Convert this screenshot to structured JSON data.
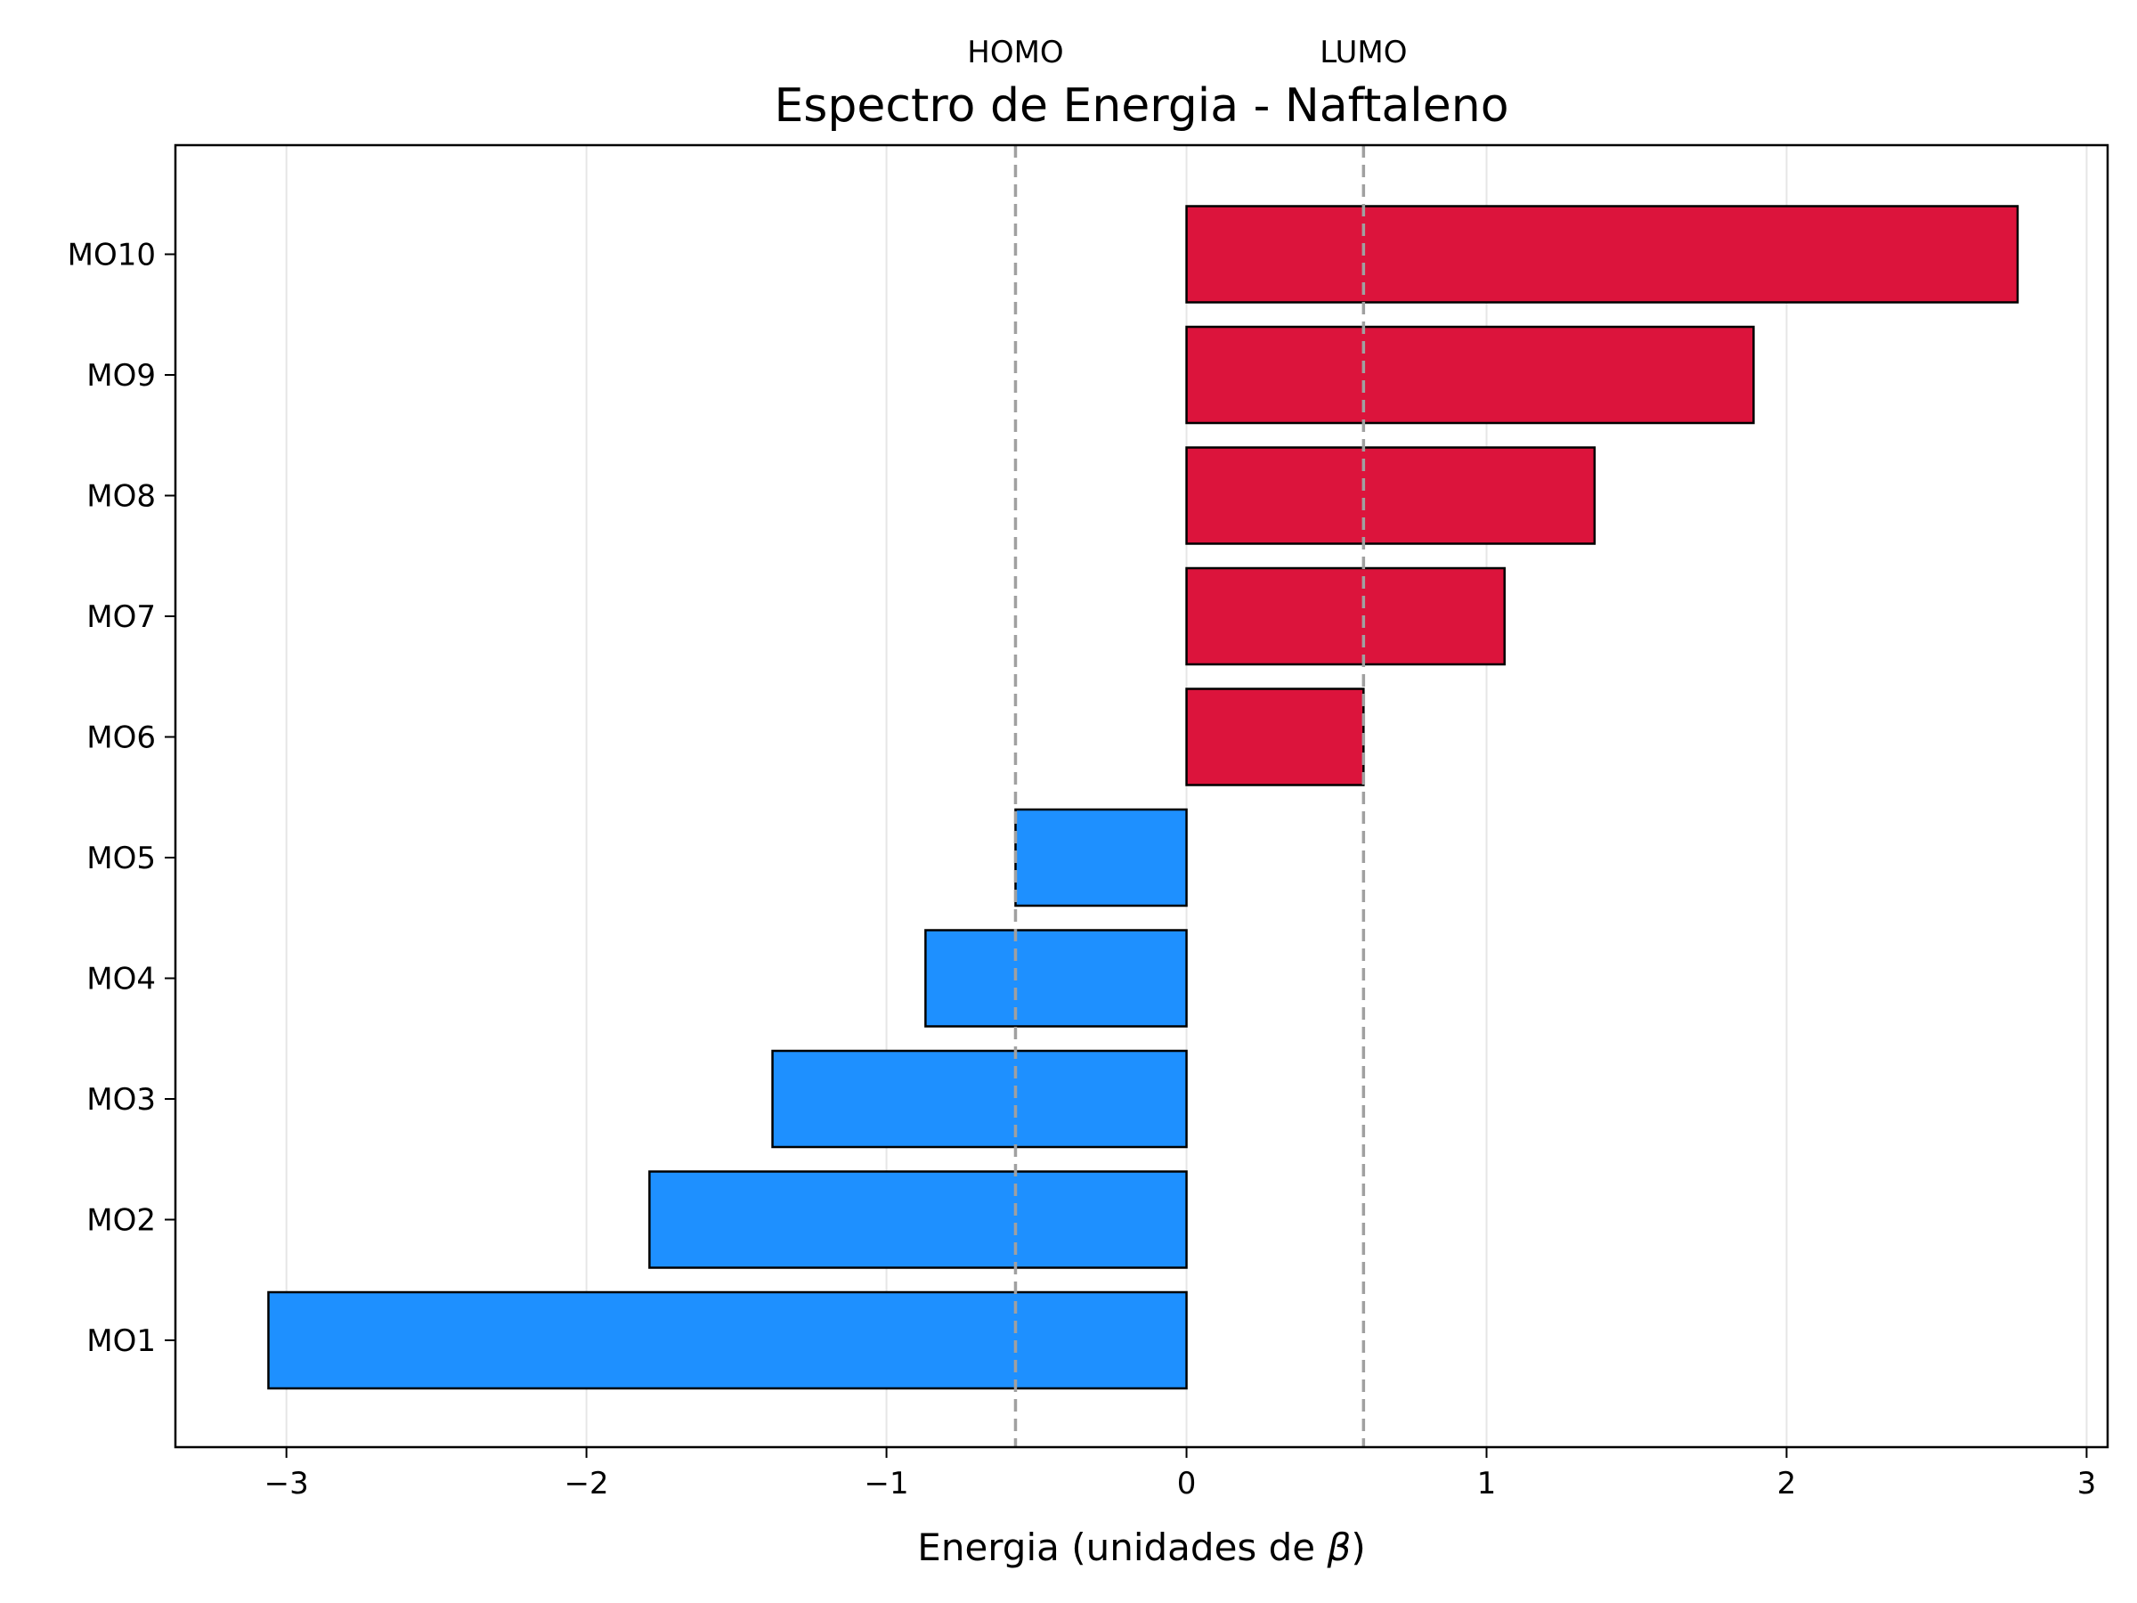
{
  "chart_data": {
    "type": "bar",
    "orientation": "horizontal",
    "title": "Espectro de Energia - Naftaleno",
    "xlabel_prefix": "Energia (unidades de ",
    "xlabel_symbol": "β",
    "xlabel_suffix": ")",
    "ylabel": "",
    "categories": [
      "MO1",
      "MO2",
      "MO3",
      "MO4",
      "MO5",
      "MO6",
      "MO7",
      "MO8",
      "MO9",
      "MO10"
    ],
    "values": [
      -3.06,
      -1.79,
      -1.38,
      -0.87,
      -0.57,
      0.59,
      1.06,
      1.36,
      1.89,
      2.77
    ],
    "xlim": [
      -3.37,
      3.07
    ],
    "xticks": [
      -3,
      -2,
      -1,
      0,
      1,
      2,
      3
    ],
    "xtick_labels": [
      "−3",
      "−2",
      "−1",
      "0",
      "1",
      "2",
      "3"
    ],
    "grid": "x",
    "colors": {
      "negative": "#1e90ff",
      "positive": "#dc143c",
      "edge": "#000000",
      "grid": "#e6e6e6",
      "reference": "#a0a0a0"
    },
    "reference_lines": [
      {
        "label": "HOMO",
        "x": -0.57
      },
      {
        "label": "LUMO",
        "x": 0.59
      }
    ]
  }
}
